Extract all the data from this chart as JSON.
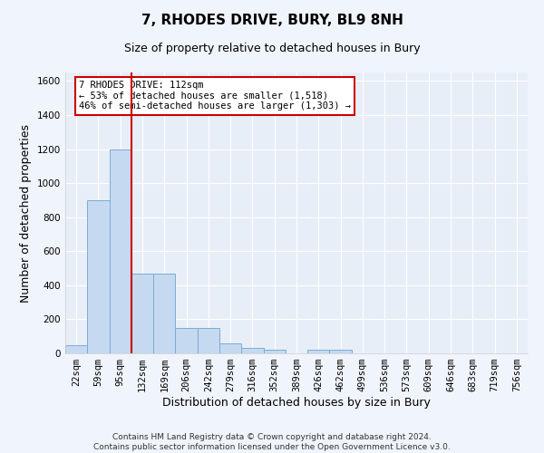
{
  "title": "7, RHODES DRIVE, BURY, BL9 8NH",
  "subtitle": "Size of property relative to detached houses in Bury",
  "xlabel": "Distribution of detached houses by size in Bury",
  "ylabel": "Number of detached properties",
  "bar_color": "#c5d9f0",
  "bar_edge_color": "#7badd4",
  "bg_color": "#e8eef8",
  "grid_color": "#ffffff",
  "vline_color": "#cc0000",
  "annotation_text": "7 RHODES DRIVE: 112sqm\n← 53% of detached houses are smaller (1,518)\n46% of semi-detached houses are larger (1,303) →",
  "annotation_box_color": "#ffffff",
  "annotation_box_edge": "#cc0000",
  "categories": [
    "22sqm",
    "59sqm",
    "95sqm",
    "132sqm",
    "169sqm",
    "206sqm",
    "242sqm",
    "279sqm",
    "316sqm",
    "352sqm",
    "389sqm",
    "426sqm",
    "462sqm",
    "499sqm",
    "536sqm",
    "573sqm",
    "609sqm",
    "646sqm",
    "683sqm",
    "719sqm",
    "756sqm"
  ],
  "values": [
    50,
    900,
    1200,
    470,
    470,
    150,
    150,
    60,
    30,
    20,
    0,
    20,
    20,
    0,
    0,
    0,
    0,
    0,
    0,
    0,
    0
  ],
  "ylim": [
    0,
    1650
  ],
  "yticks": [
    0,
    200,
    400,
    600,
    800,
    1000,
    1200,
    1400,
    1600
  ],
  "footer_text": "Contains HM Land Registry data © Crown copyright and database right 2024.\nContains public sector information licensed under the Open Government Licence v3.0.",
  "title_fontsize": 11,
  "subtitle_fontsize": 9,
  "xlabel_fontsize": 9,
  "ylabel_fontsize": 9,
  "tick_fontsize": 7.5,
  "footer_fontsize": 6.5
}
